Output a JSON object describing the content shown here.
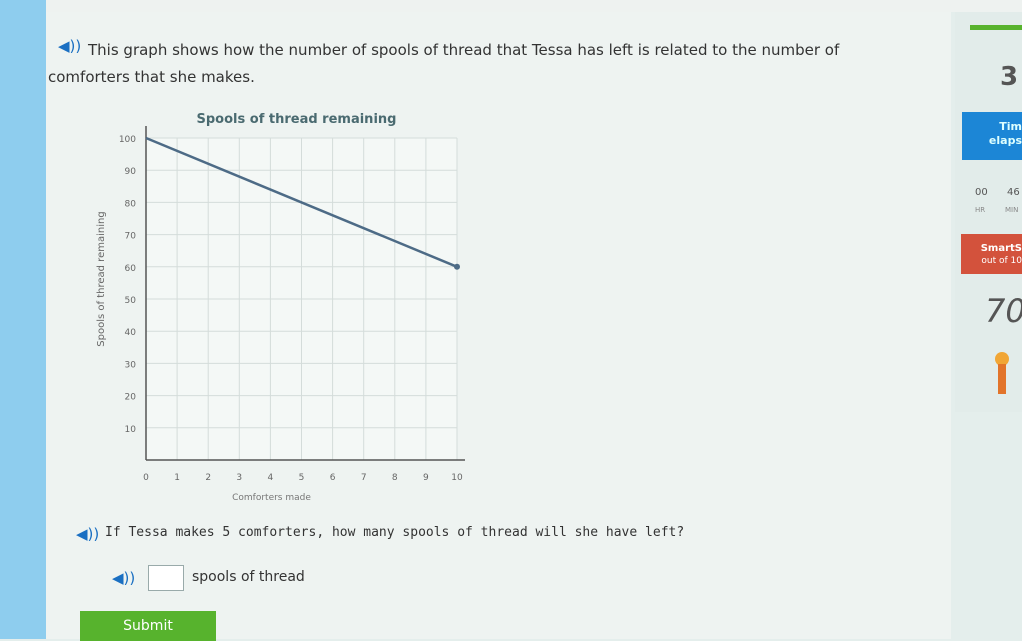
{
  "question": {
    "intro": "This graph shows how the number of spools of thread that Tessa has left is related to the number of comforters that she makes.",
    "prompt": "If Tessa makes 5 comforters, how many spools of thread will she have left?",
    "answer_value": "",
    "unit_label": "spools of thread",
    "submit_label": "Submit"
  },
  "sidebar": {
    "questions_answered": "3",
    "time_label_1": "Tim",
    "time_label_2": "elaps",
    "hr": "00",
    "min": "46",
    "hr_label": "HR",
    "min_label": "MIN",
    "smartscore_label": "SmartS",
    "smartscore_sub": "out of 10",
    "smartscore": "70",
    "colors": {
      "time": "#1c86d6",
      "smartscore": "#d3523c",
      "progress": "#57b32d"
    }
  },
  "chart_data": {
    "type": "line",
    "title": "Spools of thread remaining",
    "xlabel": "Comforters made",
    "ylabel": "Spools of thread remaining",
    "xlim": [
      0,
      10
    ],
    "ylim": [
      0,
      100
    ],
    "xticks": [
      "0",
      "1",
      "2",
      "3",
      "4",
      "5",
      "6",
      "7",
      "8",
      "9",
      "10"
    ],
    "yticks": [
      "10",
      "20",
      "30",
      "40",
      "50",
      "60",
      "70",
      "80",
      "90",
      "100"
    ],
    "grid": true,
    "x": [
      0,
      10
    ],
    "y": [
      100,
      60
    ],
    "color": "#4d6b86"
  }
}
